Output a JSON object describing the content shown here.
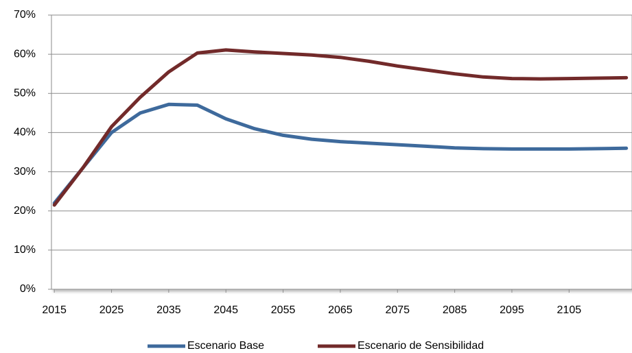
{
  "chart_data": {
    "type": "line",
    "x": [
      2015,
      2020,
      2025,
      2030,
      2035,
      2040,
      2045,
      2050,
      2055,
      2060,
      2065,
      2070,
      2075,
      2080,
      2085,
      2090,
      2095,
      2100,
      2105,
      2110,
      2115
    ],
    "series": [
      {
        "name": "Escenario Base",
        "color": "#3e6a9c",
        "values": [
          22,
          31,
          40,
          45,
          47.2,
          47,
          43.5,
          41,
          39.3,
          38.3,
          37.7,
          37.3,
          36.9,
          36.5,
          36.1,
          35.9,
          35.8,
          35.8,
          35.8,
          35.9,
          36
        ]
      },
      {
        "name": "Escenario de Sensibilidad",
        "color": "#722a2a",
        "values": [
          21.5,
          31,
          41.5,
          49,
          55.5,
          60.3,
          61.1,
          60.6,
          60.2,
          59.8,
          59.2,
          58.2,
          57,
          56,
          55,
          54.2,
          53.8,
          53.7,
          53.8,
          53.9,
          54
        ]
      }
    ],
    "xlim": [
      2014.5,
      2116
    ],
    "xticks": [
      2015,
      2025,
      2035,
      2045,
      2055,
      2065,
      2075,
      2085,
      2095,
      2105
    ],
    "ylim": [
      0,
      70
    ],
    "yticks": [
      {
        "value": 0,
        "label": "0%"
      },
      {
        "value": 10,
        "label": "10%"
      },
      {
        "value": 20,
        "label": "20%"
      },
      {
        "value": 30,
        "label": "30%"
      },
      {
        "value": 40,
        "label": "40%"
      },
      {
        "value": 50,
        "label": "50%"
      },
      {
        "value": 60,
        "label": "60%"
      },
      {
        "value": 70,
        "label": "70%"
      }
    ],
    "grid": true
  }
}
